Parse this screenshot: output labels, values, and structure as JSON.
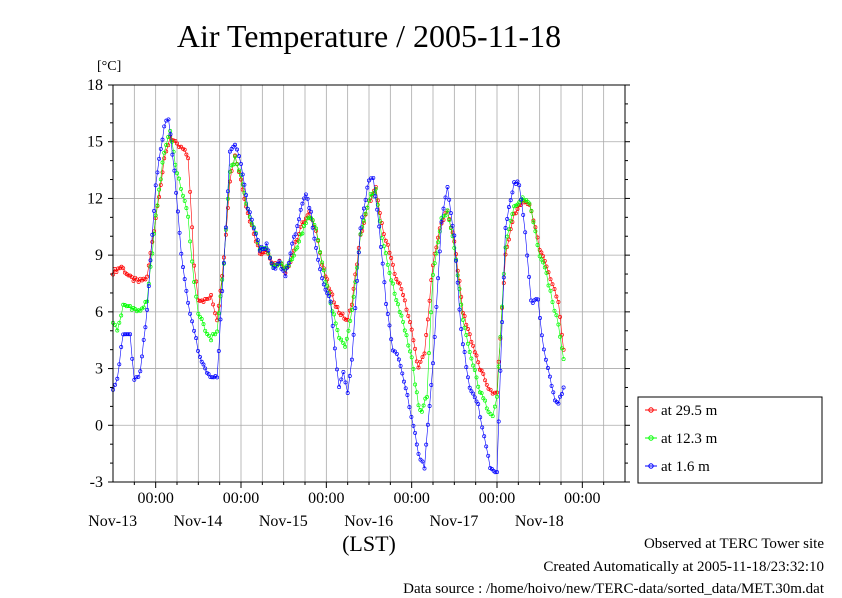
{
  "chart_data": {
    "type": "line",
    "title": "Air Temperature / 2005-11-18",
    "ylabel": "[°C]",
    "xlabel": "(LST)",
    "ylim": [
      -3,
      18
    ],
    "yticks": [
      -3,
      0,
      3,
      6,
      9,
      12,
      15,
      18
    ],
    "xlim_days": [
      -0.5,
      5.5
    ],
    "x_ticks": [
      {
        "day": 0,
        "time": "00:00",
        "date": "Nov-13"
      },
      {
        "day": 1,
        "time": "00:00",
        "date": "Nov-14"
      },
      {
        "day": 2,
        "time": "00:00",
        "date": "Nov-15"
      },
      {
        "day": 3,
        "time": "00:00",
        "date": "Nov-16"
      },
      {
        "day": 4,
        "time": "00:00",
        "date": "Nov-17"
      },
      {
        "day": 5,
        "time": "00:00",
        "date": "Nov-18"
      }
    ],
    "grid": true,
    "legend_position": "right",
    "series": [
      {
        "name": "at 29.5 m",
        "color": "#ff0000",
        "points": [
          [
            -0.5,
            8.1
          ],
          [
            -0.4,
            8.4
          ],
          [
            -0.3,
            7.8
          ],
          [
            -0.2,
            7.6
          ],
          [
            -0.1,
            7.8
          ],
          [
            0.0,
            11.0
          ],
          [
            0.1,
            14.0
          ],
          [
            0.17,
            15.3
          ],
          [
            0.25,
            14.8
          ],
          [
            0.32,
            14.6
          ],
          [
            0.38,
            14.2
          ],
          [
            0.45,
            8.5
          ],
          [
            0.5,
            6.7
          ],
          [
            0.58,
            6.6
          ],
          [
            0.65,
            6.8
          ],
          [
            0.72,
            5.6
          ],
          [
            0.8,
            8.8
          ],
          [
            0.87,
            13.0
          ],
          [
            0.93,
            14.3
          ],
          [
            1.0,
            13.0
          ],
          [
            1.08,
            11.2
          ],
          [
            1.15,
            10.2
          ],
          [
            1.22,
            9.1
          ],
          [
            1.3,
            9.3
          ],
          [
            1.38,
            8.4
          ],
          [
            1.45,
            8.7
          ],
          [
            1.52,
            8.0
          ],
          [
            1.6,
            9.0
          ],
          [
            1.7,
            10.5
          ],
          [
            1.8,
            11.2
          ],
          [
            1.88,
            10.4
          ],
          [
            1.95,
            8.5
          ],
          [
            2.05,
            7.0
          ],
          [
            2.15,
            6.0
          ],
          [
            2.25,
            5.5
          ],
          [
            2.3,
            6.5
          ],
          [
            2.4,
            10.0
          ],
          [
            2.5,
            11.8
          ],
          [
            2.58,
            12.5
          ],
          [
            2.65,
            10.6
          ],
          [
            2.72,
            9.5
          ],
          [
            2.8,
            8.0
          ],
          [
            2.9,
            7.0
          ],
          [
            3.0,
            5.0
          ],
          [
            3.08,
            3.0
          ],
          [
            3.15,
            3.8
          ],
          [
            3.25,
            8.5
          ],
          [
            3.35,
            10.8
          ],
          [
            3.42,
            11.3
          ],
          [
            3.5,
            9.8
          ],
          [
            3.6,
            6.0
          ],
          [
            3.7,
            4.5
          ],
          [
            3.8,
            3.0
          ],
          [
            3.9,
            2.0
          ],
          [
            3.95,
            1.6
          ],
          [
            4.0,
            1.8
          ],
          [
            4.1,
            9.0
          ],
          [
            4.2,
            11.2
          ],
          [
            4.3,
            11.8
          ],
          [
            4.38,
            11.7
          ],
          [
            4.45,
            10.5
          ],
          [
            4.5,
            9.3
          ],
          [
            4.58,
            8.5
          ],
          [
            4.65,
            7.4
          ],
          [
            4.72,
            6.5
          ],
          [
            4.78,
            4.0
          ]
        ]
      },
      {
        "name": "at 12.3 m",
        "color": "#00ff00",
        "points": [
          [
            -0.5,
            5.5
          ],
          [
            -0.45,
            5.0
          ],
          [
            -0.38,
            6.3
          ],
          [
            -0.3,
            6.3
          ],
          [
            -0.2,
            6.0
          ],
          [
            -0.1,
            6.5
          ],
          [
            0.0,
            11.0
          ],
          [
            0.1,
            14.5
          ],
          [
            0.17,
            15.6
          ],
          [
            0.25,
            13.3
          ],
          [
            0.32,
            12.2
          ],
          [
            0.38,
            11.0
          ],
          [
            0.45,
            7.5
          ],
          [
            0.5,
            6.0
          ],
          [
            0.58,
            5.0
          ],
          [
            0.65,
            4.6
          ],
          [
            0.72,
            5.0
          ],
          [
            0.8,
            8.6
          ],
          [
            0.87,
            13.5
          ],
          [
            0.93,
            14.1
          ],
          [
            1.0,
            13.2
          ],
          [
            1.08,
            11.4
          ],
          [
            1.15,
            10.4
          ],
          [
            1.22,
            9.4
          ],
          [
            1.3,
            9.3
          ],
          [
            1.38,
            8.4
          ],
          [
            1.45,
            8.6
          ],
          [
            1.52,
            8.2
          ],
          [
            1.6,
            8.8
          ],
          [
            1.7,
            10.0
          ],
          [
            1.8,
            11.1
          ],
          [
            1.88,
            10.4
          ],
          [
            1.95,
            8.5
          ],
          [
            2.05,
            6.5
          ],
          [
            2.15,
            4.6
          ],
          [
            2.22,
            4.2
          ],
          [
            2.3,
            6.0
          ],
          [
            2.4,
            10.1
          ],
          [
            2.5,
            12.0
          ],
          [
            2.58,
            12.5
          ],
          [
            2.65,
            10.0
          ],
          [
            2.72,
            8.5
          ],
          [
            2.8,
            7.0
          ],
          [
            2.9,
            5.5
          ],
          [
            3.0,
            3.5
          ],
          [
            3.08,
            1.0
          ],
          [
            3.12,
            0.8
          ],
          [
            3.18,
            1.6
          ],
          [
            3.25,
            8.0
          ],
          [
            3.35,
            10.9
          ],
          [
            3.42,
            11.3
          ],
          [
            3.5,
            9.5
          ],
          [
            3.6,
            5.5
          ],
          [
            3.7,
            3.5
          ],
          [
            3.8,
            1.8
          ],
          [
            3.9,
            0.8
          ],
          [
            3.95,
            0.6
          ],
          [
            4.0,
            1.5
          ],
          [
            4.1,
            9.5
          ],
          [
            4.2,
            11.5
          ],
          [
            4.3,
            12.0
          ],
          [
            4.38,
            11.8
          ],
          [
            4.45,
            10.2
          ],
          [
            4.5,
            9.0
          ],
          [
            4.58,
            8.0
          ],
          [
            4.65,
            6.5
          ],
          [
            4.72,
            5.4
          ],
          [
            4.78,
            3.5
          ]
        ]
      },
      {
        "name": "at 1.6 m",
        "color": "#0000ff",
        "points": [
          [
            -0.5,
            2.0
          ],
          [
            -0.45,
            2.5
          ],
          [
            -0.38,
            4.8
          ],
          [
            -0.3,
            4.8
          ],
          [
            -0.25,
            2.3
          ],
          [
            -0.18,
            2.8
          ],
          [
            -0.1,
            6.0
          ],
          [
            0.0,
            12.8
          ],
          [
            0.1,
            15.8
          ],
          [
            0.15,
            16.3
          ],
          [
            0.22,
            13.5
          ],
          [
            0.3,
            9.0
          ],
          [
            0.38,
            6.5
          ],
          [
            0.45,
            5.0
          ],
          [
            0.52,
            3.5
          ],
          [
            0.6,
            2.8
          ],
          [
            0.68,
            2.5
          ],
          [
            0.72,
            2.5
          ],
          [
            0.8,
            8.5
          ],
          [
            0.87,
            14.4
          ],
          [
            0.93,
            14.9
          ],
          [
            1.0,
            13.8
          ],
          [
            1.08,
            11.5
          ],
          [
            1.15,
            10.5
          ],
          [
            1.22,
            9.3
          ],
          [
            1.3,
            9.5
          ],
          [
            1.38,
            8.2
          ],
          [
            1.45,
            8.6
          ],
          [
            1.52,
            7.9
          ],
          [
            1.6,
            9.5
          ],
          [
            1.7,
            11.3
          ],
          [
            1.76,
            12.2
          ],
          [
            1.82,
            11.2
          ],
          [
            1.88,
            9.3
          ],
          [
            1.95,
            7.8
          ],
          [
            2.05,
            6.5
          ],
          [
            2.1,
            4.0
          ],
          [
            2.15,
            2.0
          ],
          [
            2.2,
            2.8
          ],
          [
            2.25,
            1.8
          ],
          [
            2.3,
            3.5
          ],
          [
            2.4,
            10.5
          ],
          [
            2.5,
            13.0
          ],
          [
            2.55,
            13.1
          ],
          [
            2.62,
            10.5
          ],
          [
            2.7,
            6.5
          ],
          [
            2.78,
            4.0
          ],
          [
            2.85,
            3.5
          ],
          [
            2.95,
            1.5
          ],
          [
            3.02,
            0.0
          ],
          [
            3.08,
            -1.5
          ],
          [
            3.15,
            -2.2
          ],
          [
            3.25,
            3.2
          ],
          [
            3.35,
            10.8
          ],
          [
            3.42,
            12.5
          ],
          [
            3.5,
            10.0
          ],
          [
            3.58,
            5.0
          ],
          [
            3.68,
            2.0
          ],
          [
            3.78,
            1.0
          ],
          [
            3.85,
            -0.5
          ],
          [
            3.92,
            -2.3
          ],
          [
            4.0,
            -2.4
          ],
          [
            4.1,
            10.5
          ],
          [
            4.2,
            12.8
          ],
          [
            4.26,
            12.8
          ],
          [
            4.33,
            10.2
          ],
          [
            4.4,
            6.5
          ],
          [
            4.48,
            6.6
          ],
          [
            4.55,
            4.0
          ],
          [
            4.62,
            2.5
          ],
          [
            4.68,
            1.3
          ],
          [
            4.72,
            1.2
          ],
          [
            4.78,
            2.0
          ]
        ]
      }
    ]
  },
  "footer": {
    "line1": "Observed at TERC Tower site",
    "line2": "Created Automatically at 2005-11-18/23:32:10",
    "line3": "Data source : /home/hoivo/new/TERC-data/sorted_data/MET.30m.dat"
  }
}
